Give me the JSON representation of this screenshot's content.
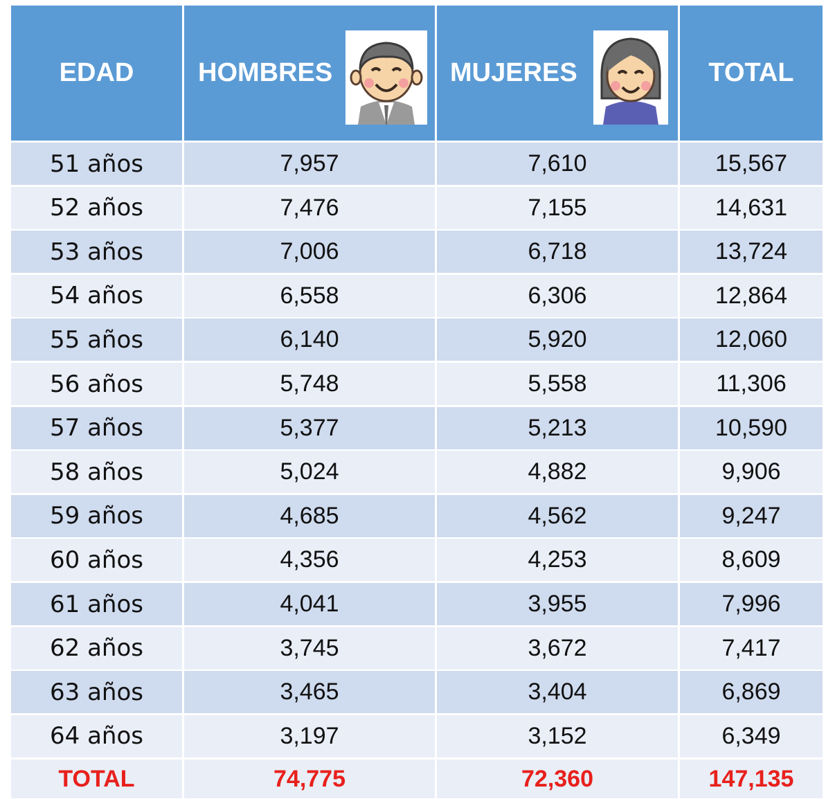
{
  "header": {
    "columns": [
      "EDAD",
      "HOMBRES",
      "MUJERES",
      "TOTAL"
    ]
  },
  "table": {
    "rows": [
      [
        "51 años",
        "7,957",
        "7,610",
        "15,567"
      ],
      [
        "52 años",
        "7,476",
        "7,155",
        "14,631"
      ],
      [
        "53 años",
        "7,006",
        "6,718",
        "13,724"
      ],
      [
        "54 años",
        "6,558",
        "6,306",
        "12,864"
      ],
      [
        "55 años",
        "6,140",
        "5,920",
        "12,060"
      ],
      [
        "56 años",
        "5,748",
        "5,558",
        "11,306"
      ],
      [
        "57 años",
        "5,377",
        "5,213",
        "10,590"
      ],
      [
        "58 años",
        "5,024",
        "4,882",
        "9,906"
      ],
      [
        "59 años",
        "4,685",
        "4,562",
        "9,247"
      ],
      [
        "60 años",
        "4,356",
        "4,253",
        "8,609"
      ],
      [
        "61 años",
        "4,041",
        "3,955",
        "7,996"
      ],
      [
        "62 años",
        "3,745",
        "3,672",
        "7,417"
      ],
      [
        "63 años",
        "3,465",
        "3,404",
        "6,869"
      ],
      [
        "64 años",
        "3,197",
        "3,152",
        "6,349"
      ]
    ]
  },
  "total": [
    "TOTAL",
    "74,775",
    "72,360",
    "147,135"
  ]
}
